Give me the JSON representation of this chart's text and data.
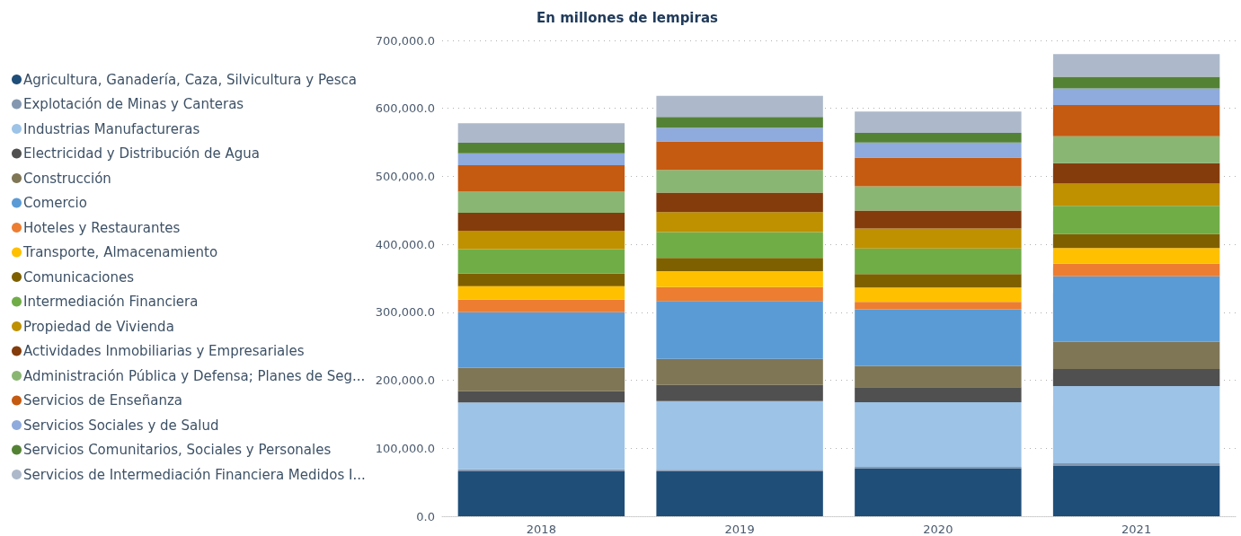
{
  "chart_data": {
    "type": "bar",
    "title": "En millones de lempiras",
    "stacked": true,
    "categories": [
      "2018",
      "2019",
      "2020",
      "2021"
    ],
    "ylim": [
      0,
      700000
    ],
    "yticks": [
      {
        "value": 0,
        "label": "0.0"
      },
      {
        "value": 100000,
        "label": "100,000.0"
      },
      {
        "value": 200000,
        "label": "200,000.0"
      },
      {
        "value": 300000,
        "label": "300,000.0"
      },
      {
        "value": 400000,
        "label": "400,000.0"
      },
      {
        "value": 500000,
        "label": "500,000.0"
      },
      {
        "value": 600000,
        "label": "600,000.0"
      },
      {
        "value": 700000,
        "label": "700,000.0"
      }
    ],
    "grid": "y",
    "legend": "left",
    "series": [
      {
        "name": "Agricultura, Ganadería, Caza, Silvicultura y Pesca",
        "color": "#1f4e79",
        "values": [
          66000,
          66000,
          70500,
          74000
        ]
      },
      {
        "name": "Explotación de Minas y Canteras",
        "color": "#8497b0",
        "values": [
          3000,
          2500,
          2300,
          4000
        ]
      },
      {
        "name": "Industrias Manufactureras",
        "color": "#9dc3e6",
        "values": [
          98500,
          101000,
          95000,
          113500
        ]
      },
      {
        "name": "Electricidad y Distribución de Agua",
        "color": "#505050",
        "values": [
          16500,
          23500,
          22000,
          25000
        ]
      },
      {
        "name": "Construcción",
        "color": "#7f7656",
        "values": [
          34500,
          38500,
          31500,
          40000
        ]
      },
      {
        "name": "Comercio",
        "color": "#5b9bd5",
        "values": [
          81500,
          85000,
          83000,
          96500
        ]
      },
      {
        "name": "Hoteles y Restaurantes",
        "color": "#ed7d31",
        "values": [
          18500,
          20500,
          11000,
          18500
        ]
      },
      {
        "name": "Transporte, Almacenamiento",
        "color": "#ffc000",
        "values": [
          20000,
          23500,
          21000,
          23000
        ]
      },
      {
        "name": "Comunicaciones",
        "color": "#7f6000",
        "values": [
          18500,
          19500,
          20000,
          20500
        ]
      },
      {
        "name": "Intermediación Financiera",
        "color": "#70ad47",
        "values": [
          36000,
          38000,
          37500,
          41500
        ]
      },
      {
        "name": "Propiedad de Vivienda",
        "color": "#bf9000",
        "values": [
          27000,
          29500,
          29500,
          33000
        ]
      },
      {
        "name": "Actividades Inmobiliarias y Empresariales",
        "color": "#843c0c",
        "values": [
          26500,
          28500,
          26500,
          30000
        ]
      },
      {
        "name": "Administración Pública y Defensa; Planes de Seg...",
        "color": "#8ab673",
        "values": [
          31000,
          33500,
          35500,
          39500
        ]
      },
      {
        "name": "Servicios de Enseñanza",
        "color": "#c55a11",
        "values": [
          39000,
          42000,
          42500,
          46000
        ]
      },
      {
        "name": "Servicios Sociales y de Salud",
        "color": "#8faadc",
        "values": [
          17500,
          20000,
          22000,
          24500
        ]
      },
      {
        "name": "Servicios Comunitarios, Sociales y Personales",
        "color": "#548235",
        "values": [
          15500,
          16000,
          14000,
          17000
        ]
      },
      {
        "name": "Servicios de Intermediación Financiera Medidos I...",
        "color": "#adb9ca",
        "values": [
          28500,
          31000,
          31500,
          33500
        ]
      }
    ]
  }
}
